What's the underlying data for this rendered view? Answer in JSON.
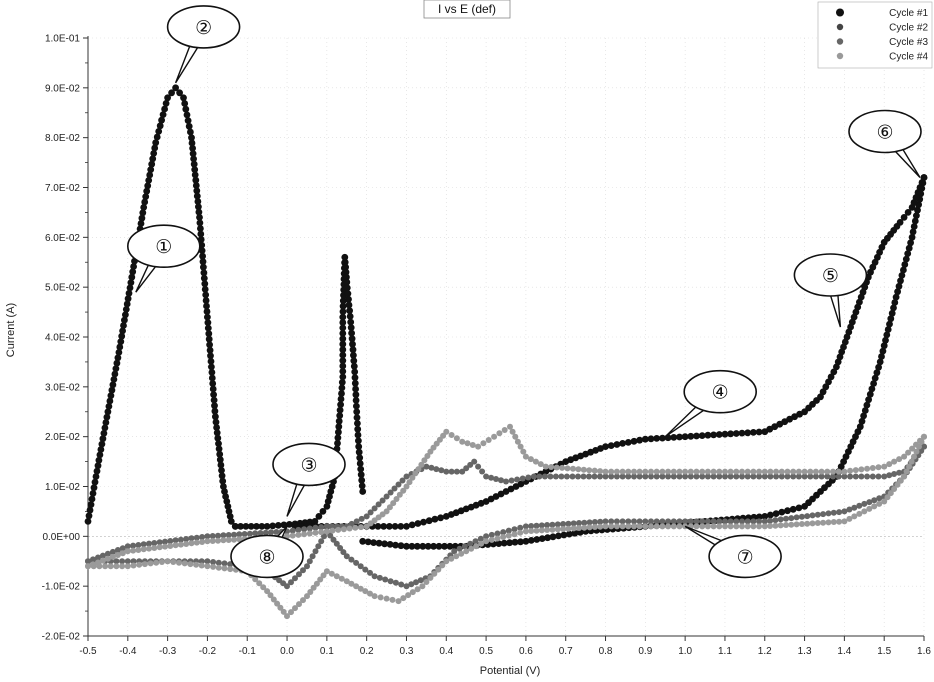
{
  "chart_data": {
    "type": "scatter",
    "title": "I vs E (def)",
    "xlabel": "Potential (V)",
    "ylabel": "Current (A)",
    "xlim": [
      -0.5,
      1.6
    ],
    "ylim": [
      -0.02,
      0.1
    ],
    "x_ticks": [
      "-0.5",
      "-0.4",
      "-0.3",
      "-0.2",
      "-0.1",
      "0.0",
      "0.1",
      "0.2",
      "0.3",
      "0.4",
      "0.5",
      "0.6",
      "0.7",
      "0.8",
      "0.9",
      "1.0",
      "1.1",
      "1.2",
      "1.3",
      "1.4",
      "1.5",
      "1.6"
    ],
    "y_ticks": [
      "1.0E-01",
      "9.0E-02",
      "8.0E-02",
      "7.0E-02",
      "6.0E-02",
      "5.0E-02",
      "4.0E-02",
      "3.0E-02",
      "2.0E-02",
      "1.0E-02",
      "0.0E+00",
      "-1.0E-02",
      "-2.0E-02"
    ],
    "grid": true,
    "legend_position": "top-right",
    "series": [
      {
        "name": "Cycle #1",
        "color": "#111111",
        "paths": [
          [
            [
              -0.5,
              0.003
            ],
            [
              -0.48,
              0.012
            ],
            [
              -0.45,
              0.025
            ],
            [
              -0.42,
              0.038
            ],
            [
              -0.39,
              0.052
            ],
            [
              -0.36,
              0.066
            ],
            [
              -0.33,
              0.079
            ],
            [
              -0.3,
              0.088
            ],
            [
              -0.28,
              0.09
            ],
            [
              -0.26,
              0.088
            ],
            [
              -0.24,
              0.08
            ],
            [
              -0.22,
              0.064
            ],
            [
              -0.2,
              0.044
            ],
            [
              -0.18,
              0.024
            ],
            [
              -0.16,
              0.01
            ],
            [
              -0.14,
              0.003
            ],
            [
              -0.13,
              0.002
            ]
          ],
          [
            [
              -0.13,
              0.002
            ],
            [
              -0.05,
              0.002
            ],
            [
              0.02,
              0.0025
            ],
            [
              0.07,
              0.003
            ],
            [
              0.1,
              0.006
            ],
            [
              0.12,
              0.012
            ],
            [
              0.13,
              0.022
            ],
            [
              0.14,
              0.032
            ],
            [
              0.14,
              0.044
            ],
            [
              0.145,
              0.056
            ],
            [
              0.15,
              0.051
            ],
            [
              0.16,
              0.043
            ],
            [
              0.17,
              0.033
            ],
            [
              0.175,
              0.025
            ],
            [
              0.18,
              0.018
            ],
            [
              0.19,
              0.009
            ]
          ],
          [
            [
              0.19,
              -0.001
            ],
            [
              0.3,
              -0.002
            ],
            [
              0.45,
              -0.002
            ],
            [
              0.6,
              -0.001
            ],
            [
              0.75,
              0.001
            ],
            [
              0.9,
              0.002
            ],
            [
              1.05,
              0.003
            ],
            [
              1.2,
              0.004
            ],
            [
              1.3,
              0.006
            ],
            [
              1.38,
              0.012
            ],
            [
              1.44,
              0.022
            ],
            [
              1.49,
              0.035
            ],
            [
              1.53,
              0.048
            ],
            [
              1.57,
              0.06
            ],
            [
              1.6,
              0.072
            ]
          ],
          [
            [
              1.6,
              0.072
            ],
            [
              1.57,
              0.066
            ],
            [
              1.54,
              0.063
            ],
            [
              1.5,
              0.059
            ],
            [
              1.46,
              0.052
            ],
            [
              1.42,
              0.043
            ],
            [
              1.38,
              0.034
            ],
            [
              1.34,
              0.028
            ],
            [
              1.3,
              0.025
            ],
            [
              1.25,
              0.023
            ],
            [
              1.2,
              0.021
            ],
            [
              1.1,
              0.0205
            ],
            [
              1.0,
              0.02
            ],
            [
              0.9,
              0.0195
            ],
            [
              0.8,
              0.018
            ],
            [
              0.7,
              0.015
            ],
            [
              0.6,
              0.011
            ],
            [
              0.5,
              0.007
            ],
            [
              0.4,
              0.004
            ],
            [
              0.3,
              0.002
            ],
            [
              0.2,
              0.002
            ],
            [
              0.1,
              0.002
            ],
            [
              0.02,
              0.002
            ]
          ]
        ]
      },
      {
        "name": "Cycle #2",
        "color": "#444444",
        "paths": []
      },
      {
        "name": "Cycle #3",
        "color": "#666666",
        "paths": [
          [
            [
              -0.5,
              -0.005
            ],
            [
              -0.4,
              -0.005
            ],
            [
              -0.3,
              -0.005
            ],
            [
              -0.2,
              -0.005
            ],
            [
              -0.1,
              -0.006
            ],
            [
              -0.05,
              -0.007
            ],
            [
              0.0,
              -0.01
            ],
            [
              0.05,
              -0.006
            ],
            [
              0.1,
              0.001
            ],
            [
              0.15,
              -0.004
            ],
            [
              0.22,
              -0.008
            ],
            [
              0.3,
              -0.01
            ],
            [
              0.36,
              -0.008
            ],
            [
              0.42,
              -0.003
            ],
            [
              0.5,
              0.0
            ],
            [
              0.6,
              0.002
            ],
            [
              0.8,
              0.003
            ],
            [
              1.0,
              0.003
            ],
            [
              1.2,
              0.003
            ],
            [
              1.4,
              0.005
            ],
            [
              1.5,
              0.008
            ],
            [
              1.55,
              0.012
            ],
            [
              1.6,
              0.018
            ]
          ],
          [
            [
              1.6,
              0.018
            ],
            [
              1.55,
              0.013
            ],
            [
              1.5,
              0.012
            ],
            [
              1.4,
              0.012
            ],
            [
              1.2,
              0.012
            ],
            [
              1.0,
              0.012
            ],
            [
              0.8,
              0.012
            ],
            [
              0.62,
              0.012
            ],
            [
              0.55,
              0.011
            ],
            [
              0.5,
              0.012
            ],
            [
              0.47,
              0.015
            ],
            [
              0.44,
              0.013
            ],
            [
              0.4,
              0.013
            ],
            [
              0.35,
              0.014
            ],
            [
              0.3,
              0.012
            ],
            [
              0.25,
              0.008
            ],
            [
              0.2,
              0.004
            ],
            [
              0.15,
              0.002
            ],
            [
              0.1,
              0.002
            ],
            [
              0.0,
              0.001
            ],
            [
              -0.2,
              0.0
            ],
            [
              -0.4,
              -0.002
            ],
            [
              -0.5,
              -0.005
            ]
          ]
        ]
      },
      {
        "name": "Cycle #4",
        "color": "#9a9a9a",
        "paths": [
          [
            [
              -0.5,
              -0.006
            ],
            [
              -0.4,
              -0.006
            ],
            [
              -0.3,
              -0.005
            ],
            [
              -0.2,
              -0.006
            ],
            [
              -0.1,
              -0.007
            ],
            [
              -0.05,
              -0.011
            ],
            [
              0.0,
              -0.016
            ],
            [
              0.05,
              -0.012
            ],
            [
              0.1,
              -0.007
            ],
            [
              0.15,
              -0.009
            ],
            [
              0.22,
              -0.012
            ],
            [
              0.28,
              -0.013
            ],
            [
              0.34,
              -0.01
            ],
            [
              0.4,
              -0.005
            ],
            [
              0.5,
              -0.001
            ],
            [
              0.6,
              0.001
            ],
            [
              0.8,
              0.002
            ],
            [
              1.0,
              0.002
            ],
            [
              1.2,
              0.002
            ],
            [
              1.4,
              0.003
            ],
            [
              1.5,
              0.007
            ],
            [
              1.55,
              0.012
            ],
            [
              1.6,
              0.02
            ]
          ],
          [
            [
              1.6,
              0.02
            ],
            [
              1.55,
              0.016
            ],
            [
              1.5,
              0.014
            ],
            [
              1.4,
              0.013
            ],
            [
              1.2,
              0.013
            ],
            [
              1.0,
              0.013
            ],
            [
              0.8,
              0.013
            ],
            [
              0.65,
              0.014
            ],
            [
              0.6,
              0.016
            ],
            [
              0.56,
              0.022
            ],
            [
              0.52,
              0.02
            ],
            [
              0.48,
              0.018
            ],
            [
              0.44,
              0.019
            ],
            [
              0.4,
              0.021
            ],
            [
              0.36,
              0.017
            ],
            [
              0.3,
              0.01
            ],
            [
              0.25,
              0.005
            ],
            [
              0.2,
              0.002
            ],
            [
              0.1,
              0.001
            ],
            [
              0.0,
              0.0
            ],
            [
              -0.2,
              -0.001
            ],
            [
              -0.4,
              -0.003
            ],
            [
              -0.5,
              -0.006
            ]
          ]
        ]
      }
    ],
    "annotations": [
      {
        "label": "①",
        "x": -0.38,
        "y": 0.049
      },
      {
        "label": "②",
        "x": -0.28,
        "y": 0.091
      },
      {
        "label": "③",
        "x": 0.0,
        "y": 0.004
      },
      {
        "label": "④",
        "x": 0.95,
        "y": 0.02
      },
      {
        "label": "⑤",
        "x": 1.39,
        "y": 0.042
      },
      {
        "label": "⑥",
        "x": 1.59,
        "y": 0.072
      },
      {
        "label": "⑦",
        "x": 1.0,
        "y": 0.002
      },
      {
        "label": "⑧",
        "x": 0.0,
        "y": 0.002
      }
    ]
  }
}
